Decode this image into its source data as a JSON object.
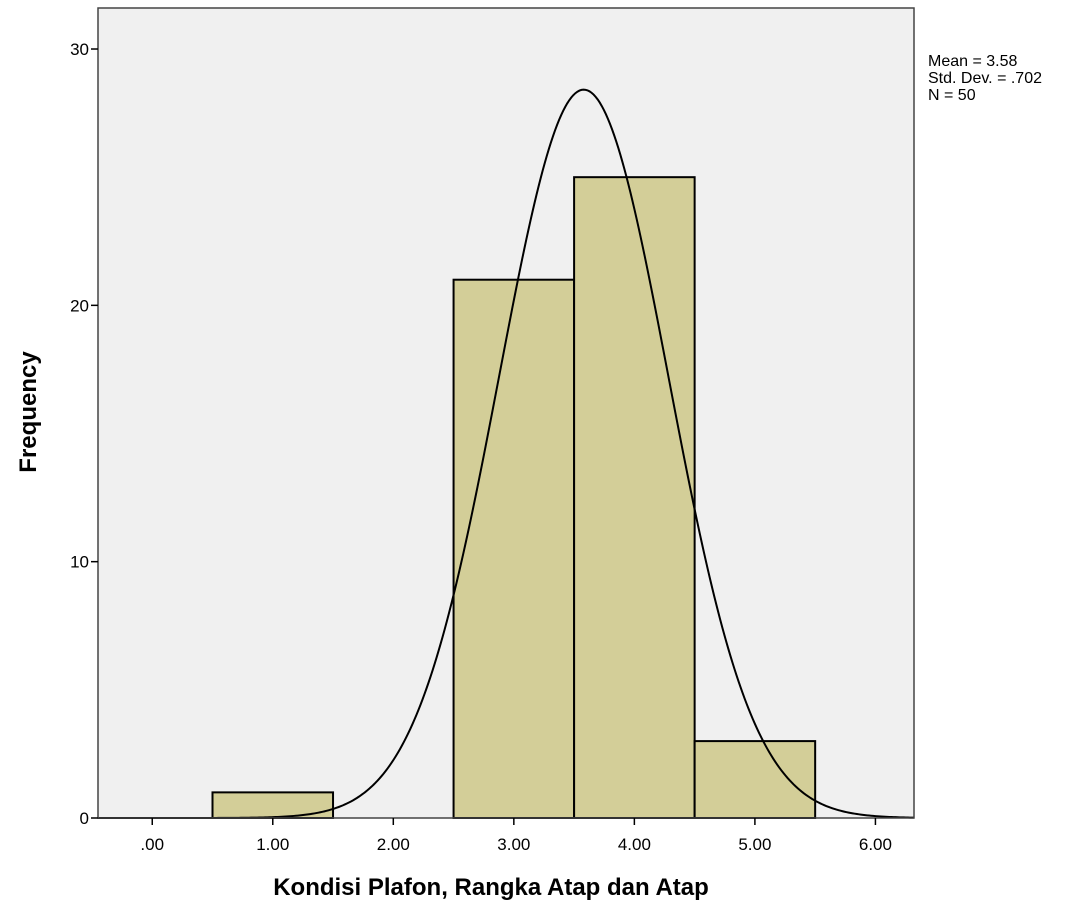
{
  "chart_data": {
    "type": "histogram",
    "xlabel": "Kondisi Plafon, Rangka Atap dan Atap",
    "ylabel": "Frequency",
    "xlim": [
      -0.45,
      6.32
    ],
    "ylim": [
      0,
      31.6
    ],
    "x_ticks": [
      {
        "value": 0,
        "label": ".00"
      },
      {
        "value": 1,
        "label": "1.00"
      },
      {
        "value": 2,
        "label": "2.00"
      },
      {
        "value": 3,
        "label": "3.00"
      },
      {
        "value": 4,
        "label": "4.00"
      },
      {
        "value": 5,
        "label": "5.00"
      },
      {
        "value": 6,
        "label": "6.00"
      }
    ],
    "y_ticks": [
      {
        "value": 0,
        "label": "0"
      },
      {
        "value": 10,
        "label": "10"
      },
      {
        "value": 20,
        "label": "20"
      },
      {
        "value": 30,
        "label": "30"
      }
    ],
    "bins": [
      {
        "x0": 0.5,
        "x1": 1.5,
        "count": 1
      },
      {
        "x0": 2.5,
        "x1": 3.5,
        "count": 21
      },
      {
        "x0": 3.5,
        "x1": 4.5,
        "count": 25
      },
      {
        "x0": 4.5,
        "x1": 5.5,
        "count": 3
      }
    ],
    "normal_curve": {
      "mean": 3.58,
      "std_dev": 0.702,
      "n": 50,
      "bin_width": 1
    },
    "stats": {
      "mean_label": "Mean = 3.58",
      "std_label": "Std. Dev. = .702",
      "n_label": "N = 50"
    },
    "grid": false,
    "colors": {
      "plot_background": "#f0f0f0",
      "bar_fill": "#d3ce98",
      "bar_stroke": "#000000",
      "curve": "#000000"
    }
  }
}
